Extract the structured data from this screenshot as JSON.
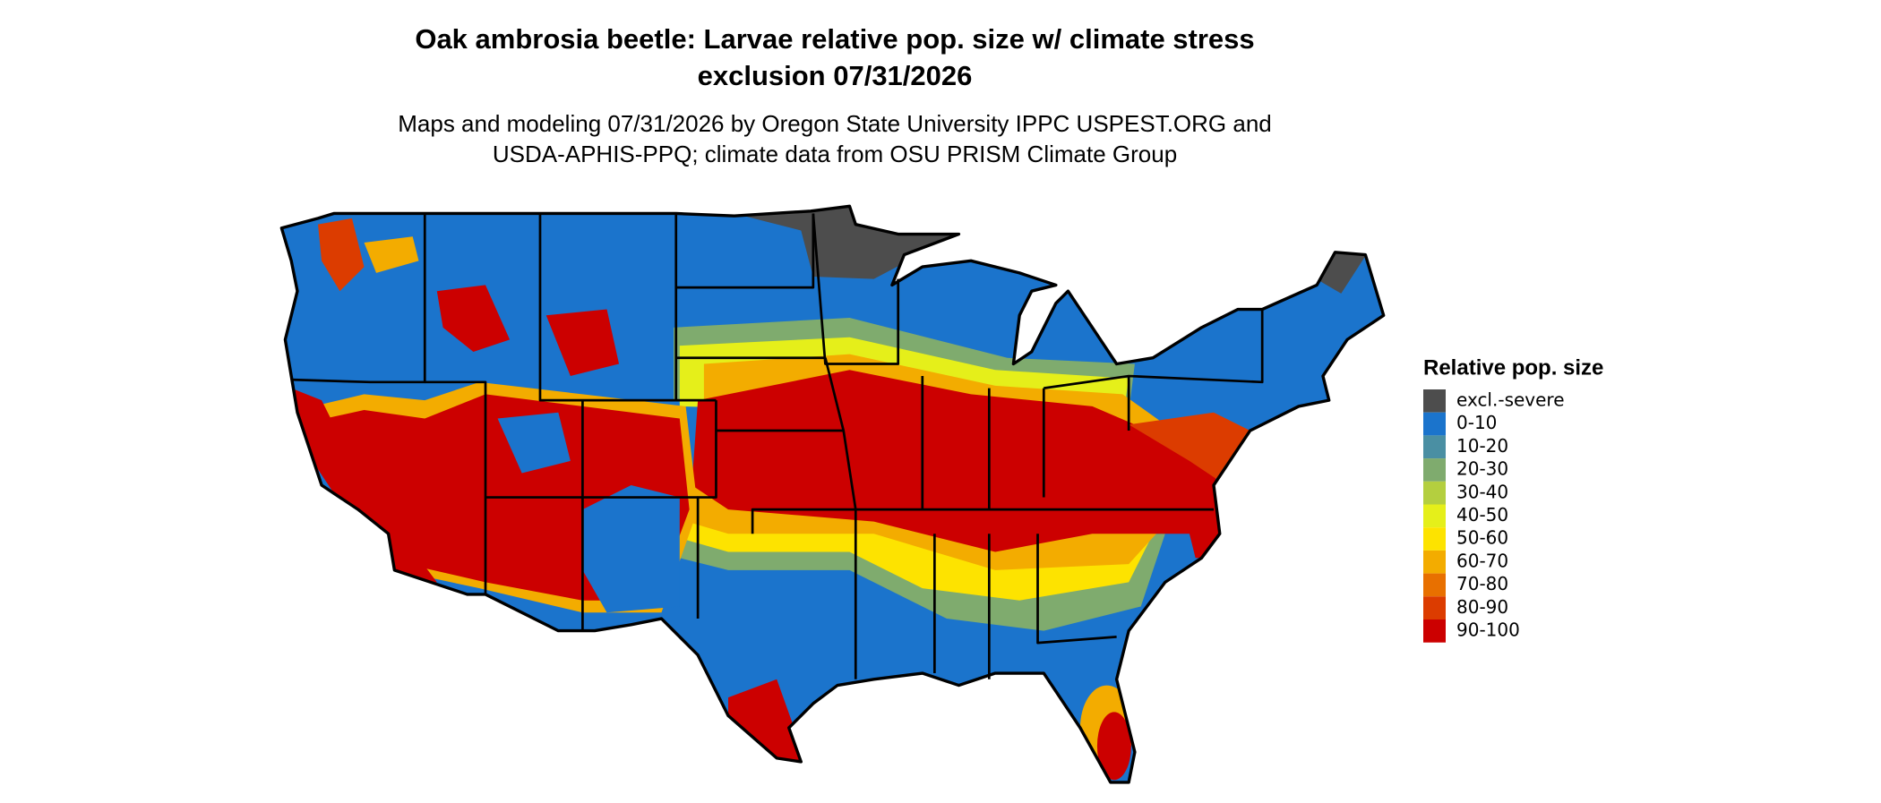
{
  "header": {
    "title": [
      "Oak ambrosia beetle: Larvae relative pop. size w/ climate stress",
      "exclusion 07/31/2026"
    ],
    "subtitle": [
      "Maps and modeling 07/31/2026 by Oregon State University IPPC USPEST.ORG and",
      "USDA-APHIS-PPQ; climate data from OSU PRISM Climate Group"
    ]
  },
  "legend": {
    "title": "Relative pop. size",
    "items": [
      {
        "label": "excl.-severe",
        "color": "#4d4d4d"
      },
      {
        "label": "0-10",
        "color": "#1b74cc"
      },
      {
        "label": "10-20",
        "color": "#4a8fa3"
      },
      {
        "label": "20-30",
        "color": "#7fab6e"
      },
      {
        "label": "30-40",
        "color": "#b4cf3f"
      },
      {
        "label": "40-50",
        "color": "#e5ef1a"
      },
      {
        "label": "50-60",
        "color": "#fde300"
      },
      {
        "label": "60-70",
        "color": "#f3ac00"
      },
      {
        "label": "70-80",
        "color": "#e87000"
      },
      {
        "label": "80-90",
        "color": "#dc3c00"
      },
      {
        "label": "90-100",
        "color": "#cc0000"
      }
    ]
  }
}
